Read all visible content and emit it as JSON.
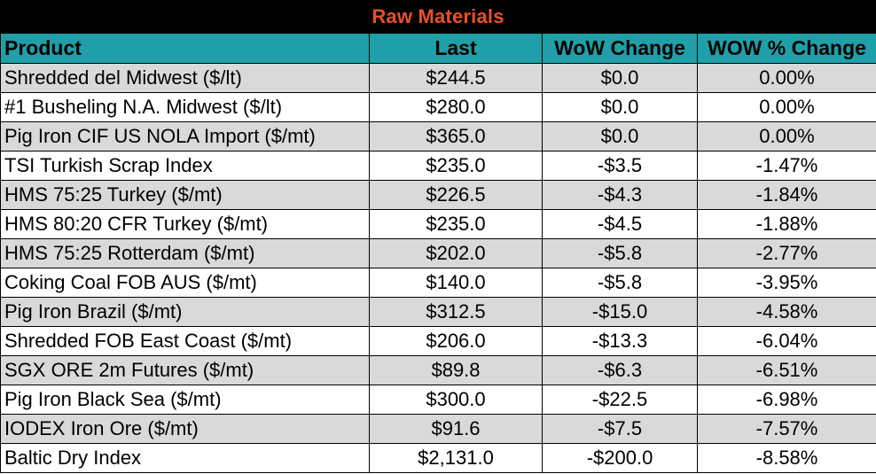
{
  "title": "Raw Materials",
  "headers": {
    "product": "Product",
    "last": "Last",
    "wow_change": "WoW Change",
    "wow_pct_change": "WOW % Change"
  },
  "colors": {
    "title_bg": "#000000",
    "title_text": "#e8502a",
    "header_bg": "#1fa0a8",
    "row_shade": "#d9d9d9",
    "row_plain": "#ffffff"
  },
  "rows": [
    {
      "product": "Shredded del  Midwest ($/lt)",
      "last": "$244.5",
      "wow": "$0.0",
      "pct": "0.00%"
    },
    {
      "product": "#1 Busheling N.A. Midwest ($/lt)",
      "last": "$280.0",
      "wow": "$0.0",
      "pct": "0.00%"
    },
    {
      "product": "Pig Iron CIF US NOLA Import ($/mt)",
      "last": "$365.0",
      "wow": "$0.0",
      "pct": "0.00%"
    },
    {
      "product": "TSI Turkish Scrap Index",
      "last": "$235.0",
      "wow": "-$3.5",
      "pct": "-1.47%"
    },
    {
      "product": "HMS 75:25 Turkey ($/mt)",
      "last": "$226.5",
      "wow": "-$4.3",
      "pct": "-1.84%"
    },
    {
      "product": "HMS 80:20 CFR Turkey ($/mt)",
      "last": "$235.0",
      "wow": "-$4.5",
      "pct": "-1.88%"
    },
    {
      "product": "HMS 75:25 Rotterdam ($/mt)",
      "last": "$202.0",
      "wow": "-$5.8",
      "pct": "-2.77%"
    },
    {
      "product": "Coking Coal FOB AUS ($/mt)",
      "last": "$140.0",
      "wow": "-$5.8",
      "pct": "-3.95%"
    },
    {
      "product": "Pig Iron Brazil ($/mt)",
      "last": "$312.5",
      "wow": "-$15.0",
      "pct": "-4.58%"
    },
    {
      "product": "Shredded FOB East Coast ($/mt)",
      "last": "$206.0",
      "wow": "-$13.3",
      "pct": "-6.04%"
    },
    {
      "product": "SGX ORE 2m Futures ($/mt)",
      "last": "$89.8",
      "wow": "-$6.3",
      "pct": "-6.51%"
    },
    {
      "product": "Pig Iron Black Sea ($/mt)",
      "last": "$300.0",
      "wow": "-$22.5",
      "pct": "-6.98%"
    },
    {
      "product": "IODEX  Iron Ore ($/mt)",
      "last": "$91.6",
      "wow": "-$7.5",
      "pct": "-7.57%"
    },
    {
      "product": "Baltic Dry Index",
      "last": "$2,131.0",
      "wow": "-$200.0",
      "pct": "-8.58%"
    }
  ]
}
